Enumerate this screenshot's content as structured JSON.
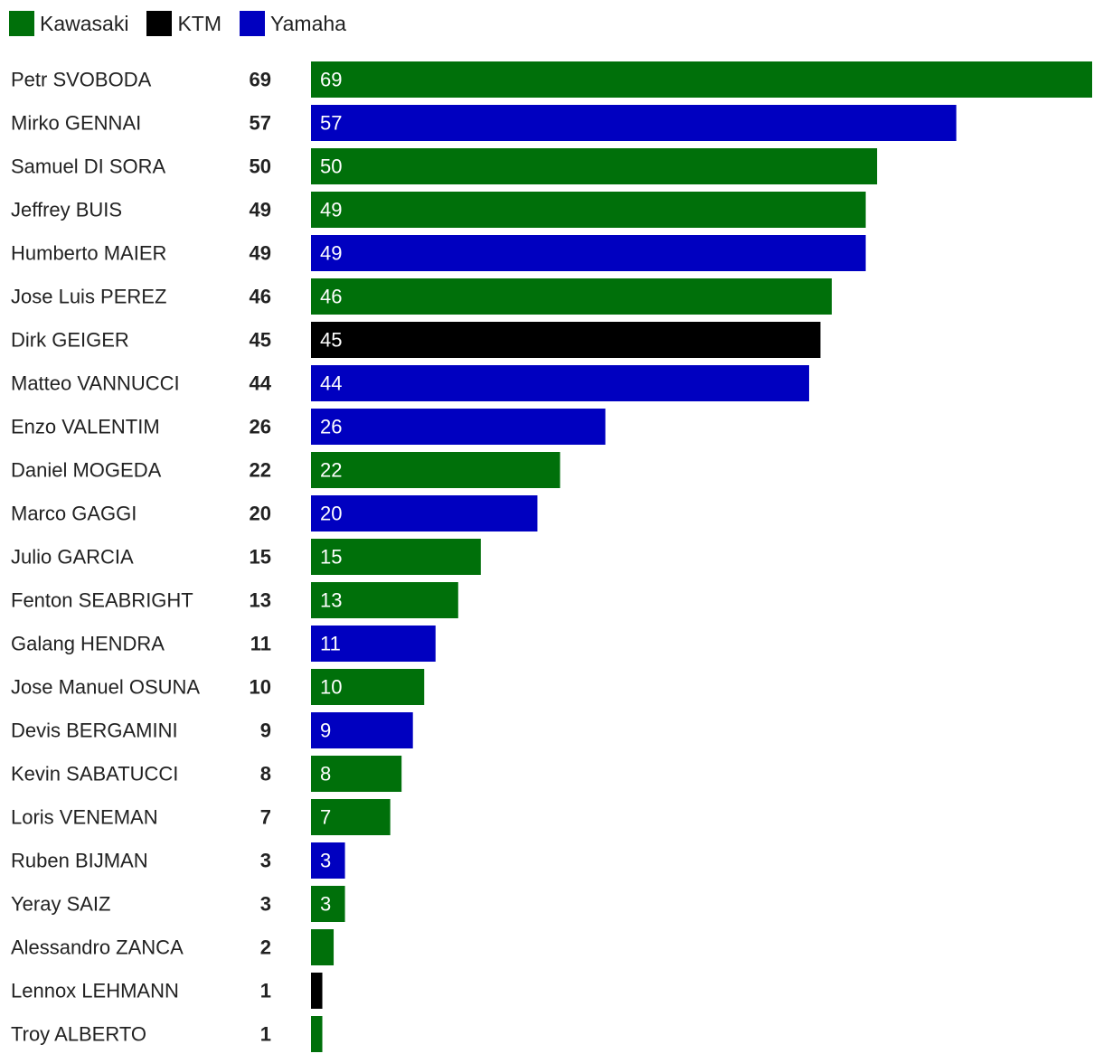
{
  "chart_data": {
    "type": "bar",
    "orientation": "horizontal",
    "legend_position": "top-left",
    "grid": false,
    "xlim": [
      0,
      69
    ],
    "legend": [
      {
        "name": "Kawasaki",
        "color": "#00700a"
      },
      {
        "name": "KTM",
        "color": "#000000"
      },
      {
        "name": "Yamaha",
        "color": "#0000c0"
      }
    ],
    "rows": [
      {
        "name": "Petr SVOBODA",
        "value": 69,
        "team": "Kawasaki",
        "bar_label": "69"
      },
      {
        "name": "Mirko GENNAI",
        "value": 57,
        "team": "Yamaha",
        "bar_label": "57"
      },
      {
        "name": "Samuel DI SORA",
        "value": 50,
        "team": "Kawasaki",
        "bar_label": "50"
      },
      {
        "name": "Jeffrey BUIS",
        "value": 49,
        "team": "Kawasaki",
        "bar_label": "49"
      },
      {
        "name": "Humberto MAIER",
        "value": 49,
        "team": "Yamaha",
        "bar_label": "49"
      },
      {
        "name": "Jose Luis PEREZ",
        "value": 46,
        "team": "Kawasaki",
        "bar_label": "46"
      },
      {
        "name": "Dirk GEIGER",
        "value": 45,
        "team": "KTM",
        "bar_label": "45"
      },
      {
        "name": "Matteo VANNUCCI",
        "value": 44,
        "team": "Yamaha",
        "bar_label": "44"
      },
      {
        "name": "Enzo VALENTIM",
        "value": 26,
        "team": "Yamaha",
        "bar_label": "26"
      },
      {
        "name": "Daniel MOGEDA",
        "value": 22,
        "team": "Kawasaki",
        "bar_label": "22"
      },
      {
        "name": "Marco GAGGI",
        "value": 20,
        "team": "Yamaha",
        "bar_label": "20"
      },
      {
        "name": "Julio GARCIA",
        "value": 15,
        "team": "Kawasaki",
        "bar_label": "15"
      },
      {
        "name": "Fenton SEABRIGHT",
        "value": 13,
        "team": "Kawasaki",
        "bar_label": "13"
      },
      {
        "name": "Galang HENDRA",
        "value": 11,
        "team": "Yamaha",
        "bar_label": "11"
      },
      {
        "name": "Jose Manuel OSUNA",
        "value": 10,
        "team": "Kawasaki",
        "bar_label": "10"
      },
      {
        "name": "Devis BERGAMINI",
        "value": 9,
        "team": "Yamaha",
        "bar_label": "9"
      },
      {
        "name": "Kevin SABATUCCI",
        "value": 8,
        "team": "Kawasaki",
        "bar_label": "8"
      },
      {
        "name": "Loris VENEMAN",
        "value": 7,
        "team": "Kawasaki",
        "bar_label": "7"
      },
      {
        "name": "Ruben BIJMAN",
        "value": 3,
        "team": "Yamaha",
        "bar_label": "3"
      },
      {
        "name": "Yeray SAIZ",
        "value": 3,
        "team": "Kawasaki",
        "bar_label": "3"
      },
      {
        "name": "Alessandro ZANCA",
        "value": 2,
        "team": "Kawasaki",
        "bar_label": ""
      },
      {
        "name": "Lennox LEHMANN",
        "value": 1,
        "team": "KTM",
        "bar_label": ""
      },
      {
        "name": "Troy ALBERTO",
        "value": 1,
        "team": "Kawasaki",
        "bar_label": ""
      }
    ]
  }
}
